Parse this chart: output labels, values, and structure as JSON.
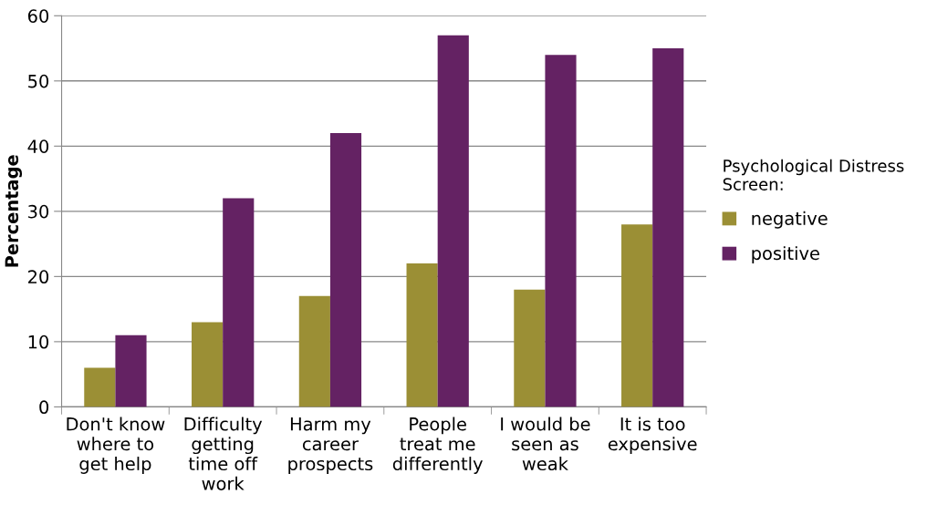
{
  "chart_data": {
    "type": "bar",
    "ylabel": "Percentage",
    "legend_title": "Psychological Distress Screen:",
    "categories": [
      "Don't know where to get help",
      "Difficulty getting time off work",
      "Harm my career prospects",
      "People treat me differently",
      "I would be seen as weak",
      "It is too expensive"
    ],
    "series": [
      {
        "name": "negative",
        "color": "#9b8f35",
        "values": [
          6,
          13,
          17,
          22,
          18,
          28
        ]
      },
      {
        "name": "positive",
        "color": "#642263",
        "values": [
          11,
          32,
          42,
          57,
          54,
          55
        ]
      }
    ],
    "ylim": [
      0,
      60
    ],
    "yticks": [
      0,
      10,
      20,
      30,
      40,
      50,
      60
    ],
    "grid": "y",
    "legend": "right"
  }
}
